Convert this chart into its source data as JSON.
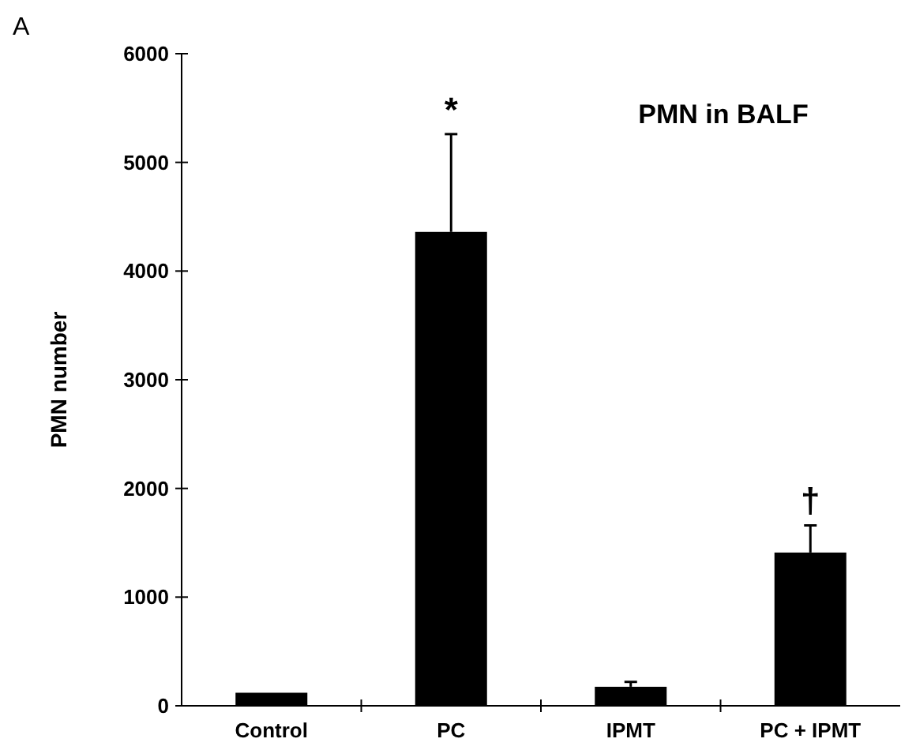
{
  "chart_data": {
    "type": "bar",
    "title": "PMN in BALF",
    "ylabel": "PMN number",
    "categories": [
      "Control",
      "PC",
      "IPMT",
      "PC + IPMT"
    ],
    "values": [
      120,
      4360,
      175,
      1410
    ],
    "errors": [
      null,
      900,
      45,
      250
    ],
    "color": "#000000",
    "ylim": [
      0,
      6000
    ],
    "yticks": [
      0,
      1000,
      2000,
      3000,
      4000,
      5000,
      6000
    ],
    "annotations": [
      "A",
      {
        "text": "*",
        "x": "PC",
        "y": 5260
      },
      {
        "text": "†",
        "x": "PC + IPMT",
        "y": 1660
      }
    ]
  }
}
